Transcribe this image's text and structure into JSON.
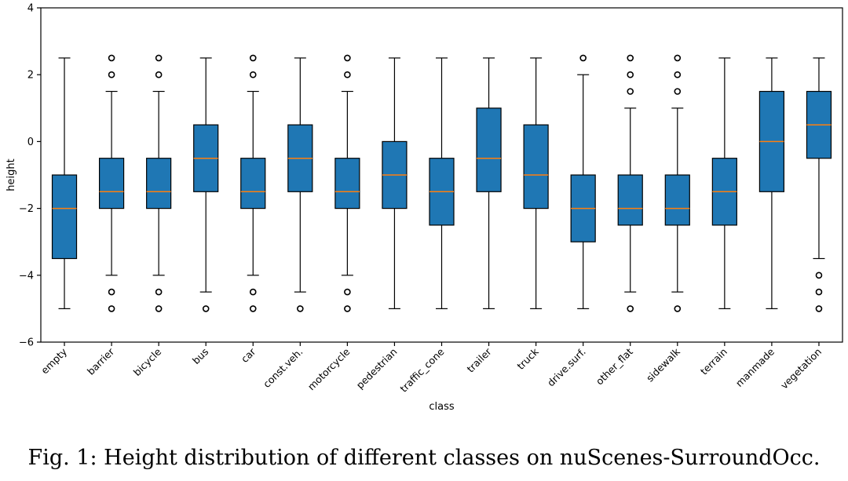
{
  "caption": "Fig. 1: Height distribution of different classes on nuScenes-SurroundOcc.",
  "chart_data": {
    "type": "boxplot",
    "title": "",
    "xlabel": "class",
    "ylabel": "height",
    "ylim": [
      -6,
      4
    ],
    "yticks": [
      -6,
      -4,
      -2,
      0,
      2,
      4
    ],
    "grid": false,
    "colors": {
      "box": "#1f77b4",
      "median": "#ff7f0e",
      "line": "#000000"
    },
    "categories": [
      "empty",
      "barrier",
      "bicycle",
      "bus",
      "car",
      "const.veh.",
      "motorcycle",
      "pedestrian",
      "traffic_cone",
      "trailer",
      "truck",
      "drive.surf.",
      "other_flat",
      "sidewalk",
      "terrain",
      "manmade",
      "vegetation"
    ],
    "boxes": [
      {
        "name": "empty",
        "whislo": -5,
        "q1": -3.5,
        "med": -2,
        "q3": -1,
        "whishi": 2.5,
        "fliers": []
      },
      {
        "name": "barrier",
        "whislo": -4,
        "q1": -2,
        "med": -1.5,
        "q3": -0.5,
        "whishi": 1.5,
        "fliers": [
          2,
          2.5,
          -4.5,
          -5
        ]
      },
      {
        "name": "bicycle",
        "whislo": -4,
        "q1": -2,
        "med": -1.5,
        "q3": -0.5,
        "whishi": 1.5,
        "fliers": [
          2,
          2.5,
          -4.5,
          -5
        ]
      },
      {
        "name": "bus",
        "whislo": -4.5,
        "q1": -1.5,
        "med": -0.5,
        "q3": 0.5,
        "whishi": 2.5,
        "fliers": [
          -5
        ]
      },
      {
        "name": "car",
        "whislo": -4,
        "q1": -2,
        "med": -1.5,
        "q3": -0.5,
        "whishi": 1.5,
        "fliers": [
          2,
          2.5,
          -4.5,
          -5
        ]
      },
      {
        "name": "const.veh.",
        "whislo": -4.5,
        "q1": -1.5,
        "med": -0.5,
        "q3": 0.5,
        "whishi": 2.5,
        "fliers": [
          -5
        ]
      },
      {
        "name": "motorcycle",
        "whislo": -4,
        "q1": -2,
        "med": -1.5,
        "q3": -0.5,
        "whishi": 1.5,
        "fliers": [
          2,
          2.5,
          -4.5,
          -5
        ]
      },
      {
        "name": "pedestrian",
        "whislo": -5,
        "q1": -2,
        "med": -1,
        "q3": 0,
        "whishi": 2.5,
        "fliers": []
      },
      {
        "name": "traffic_cone",
        "whislo": -5,
        "q1": -2.5,
        "med": -1.5,
        "q3": -0.5,
        "whishi": 2.5,
        "fliers": []
      },
      {
        "name": "trailer",
        "whislo": -5,
        "q1": -1.5,
        "med": -0.5,
        "q3": 1,
        "whishi": 2.5,
        "fliers": []
      },
      {
        "name": "truck",
        "whislo": -5,
        "q1": -2,
        "med": -1,
        "q3": 0.5,
        "whishi": 2.5,
        "fliers": []
      },
      {
        "name": "drive.surf.",
        "whislo": -5,
        "q1": -3,
        "med": -2,
        "q3": -1,
        "whishi": 2,
        "fliers": [
          2.5
        ]
      },
      {
        "name": "other_flat",
        "whislo": -4.5,
        "q1": -2.5,
        "med": -2,
        "q3": -1,
        "whishi": 1,
        "fliers": [
          1.5,
          2,
          2.5,
          -5
        ]
      },
      {
        "name": "sidewalk",
        "whislo": -4.5,
        "q1": -2.5,
        "med": -2,
        "q3": -1,
        "whishi": 1,
        "fliers": [
          1.5,
          2,
          2.5,
          -5
        ]
      },
      {
        "name": "terrain",
        "whislo": -5,
        "q1": -2.5,
        "med": -1.5,
        "q3": -0.5,
        "whishi": 2.5,
        "fliers": []
      },
      {
        "name": "manmade",
        "whislo": -5,
        "q1": -1.5,
        "med": 0,
        "q3": 1.5,
        "whishi": 2.5,
        "fliers": []
      },
      {
        "name": "vegetation",
        "whislo": -3.5,
        "q1": -0.5,
        "med": 0.5,
        "q3": 1.5,
        "whishi": 2.5,
        "fliers": [
          -4,
          -4.5,
          -5
        ]
      }
    ]
  }
}
